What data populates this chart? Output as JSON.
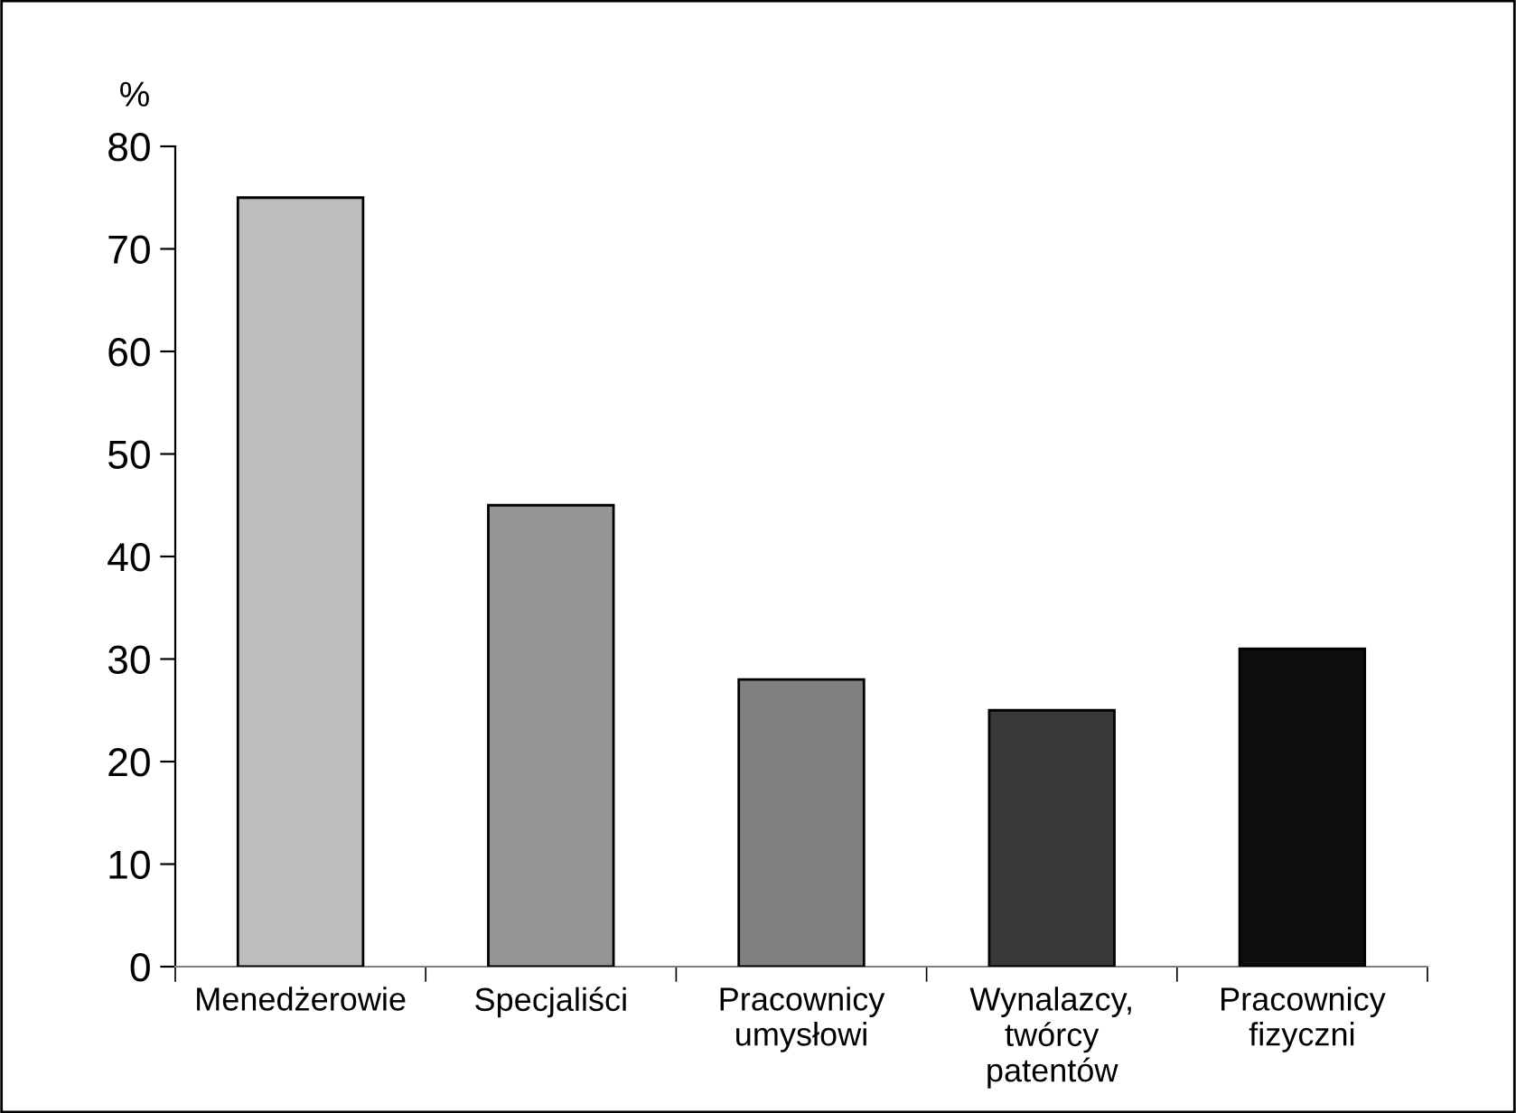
{
  "chart_data": {
    "type": "bar",
    "ylabel": "%",
    "categories": [
      "Menedżerowie",
      "Specjaliści",
      "Pracownicy\numysłowi",
      "Wynalazcy,\ntwórcy\npatentów",
      "Pracownicy\nfizyczni"
    ],
    "values": [
      75,
      45,
      28,
      25,
      31
    ],
    "colors": [
      "#bdbdbd",
      "#959595",
      "#7f7f7f",
      "#383838",
      "#0f0f0f"
    ],
    "ylim": [
      0,
      80
    ],
    "yticks": [
      0,
      10,
      20,
      30,
      40,
      50,
      60,
      70,
      80
    ],
    "grid": false
  }
}
